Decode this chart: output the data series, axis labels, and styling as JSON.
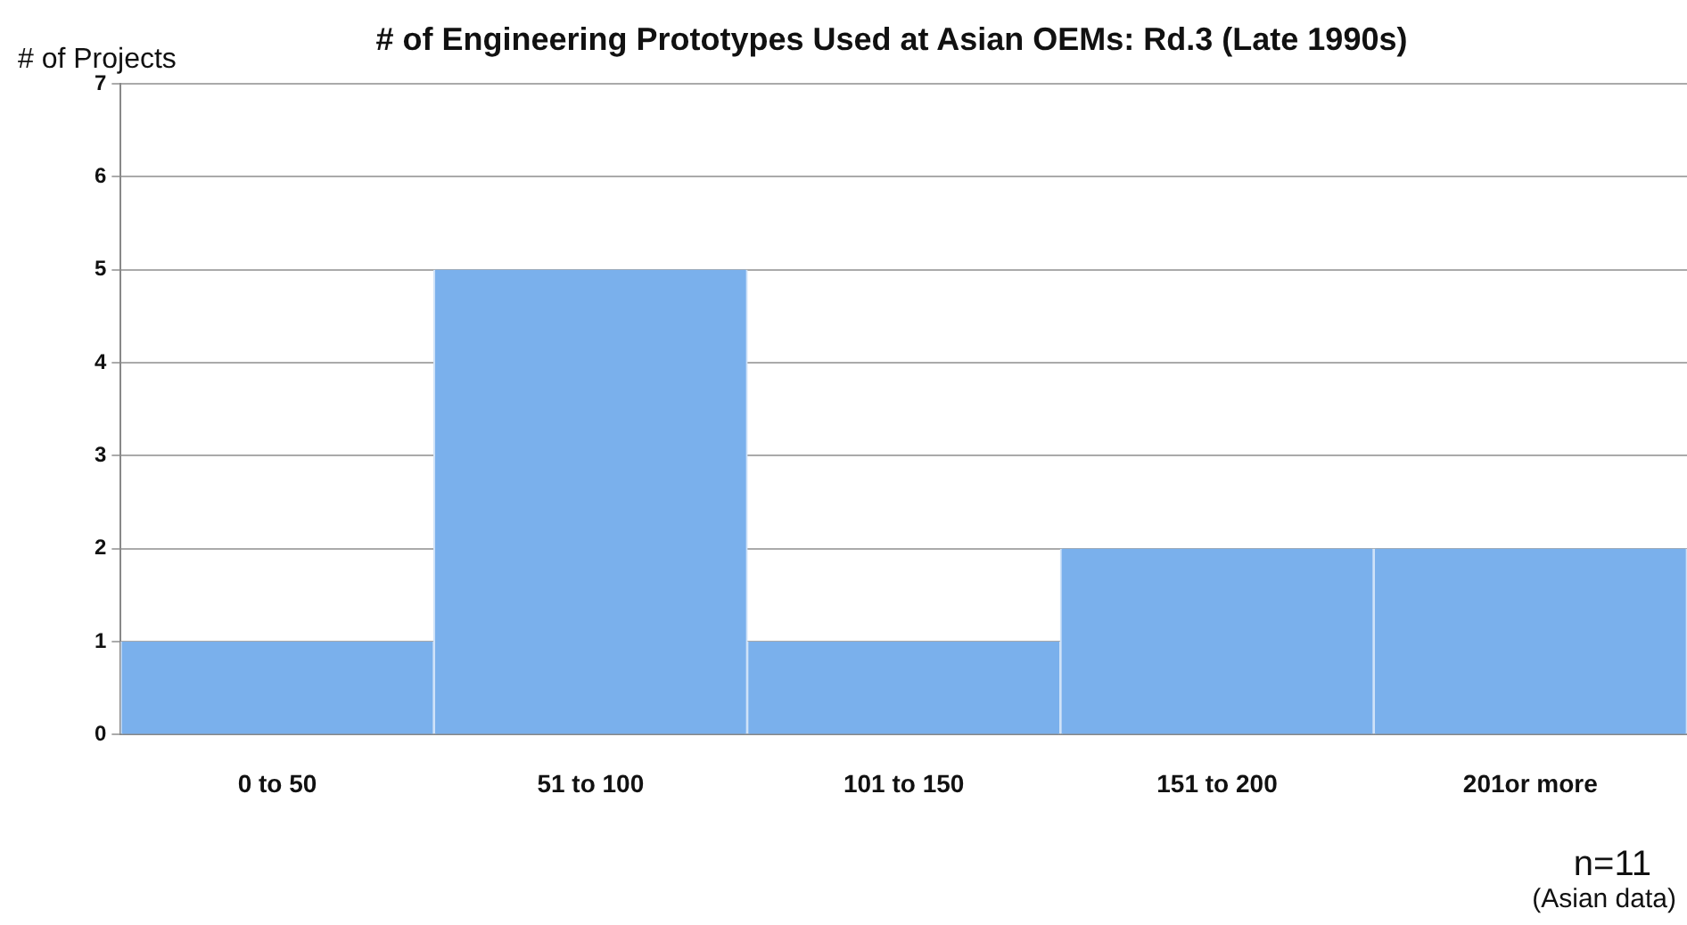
{
  "chart_data": {
    "type": "bar",
    "title": "# of Engineering Prototypes Used at Asian OEMs: Rd.3 (Late 1990s)",
    "ylabel": "# of Projects",
    "categories": [
      "0 to 50",
      "51 to 100",
      "101 to 150",
      "151 to 200",
      "201or more"
    ],
    "values": [
      1,
      5,
      1,
      2,
      2
    ],
    "color": "#7ab0ec",
    "ylim": [
      0,
      7
    ],
    "yticks": [
      0,
      1,
      2,
      3,
      4,
      5,
      6,
      7
    ],
    "grid": "y",
    "legend": false,
    "annotations": [
      "n=11",
      "(Asian data)"
    ]
  }
}
